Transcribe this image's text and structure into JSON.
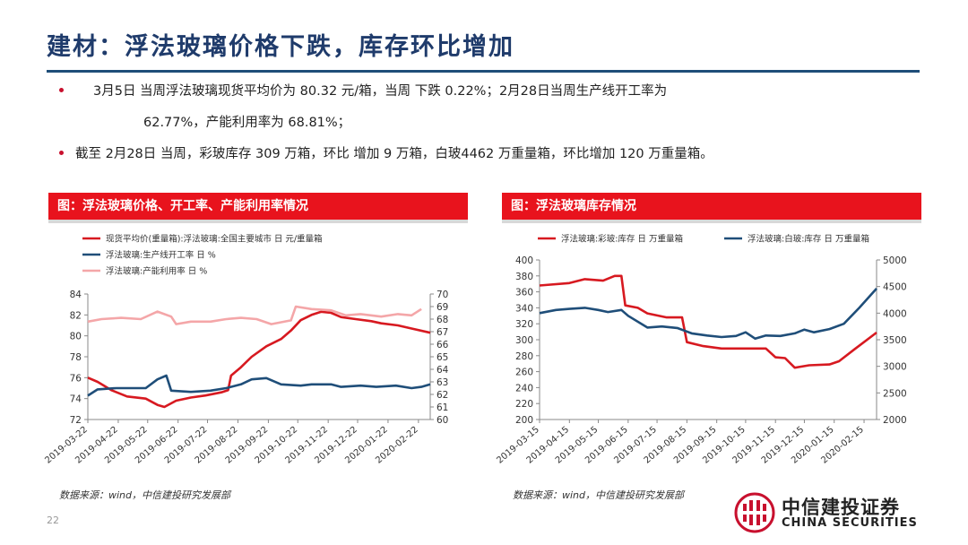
{
  "page": {
    "title": "建材：浮法玻璃价格下跌，库存环比增加",
    "bullets": [
      "3月5日 当周浮法玻璃现货平均价为 80.32 元/箱，当周 下跌 0.22%；2月28日当周生产线开工率为",
      "62.77%，产能利用率为 68.81%；",
      "截至  2月28日 当周，彩玻库存 309 万箱，环比 增加  9 万箱，白玻4462 万重量箱，环比增加 120 万重量箱。"
    ],
    "page_number": "22",
    "logo": {
      "cn": "中信建投证券",
      "en": "CHINA SECURITIES"
    },
    "colors": {
      "title": "#1f3b6b",
      "accent_red": "#e8131d",
      "series_red": "#d71920",
      "series_blue": "#1f4e79",
      "series_pink": "#f4a6a8"
    }
  },
  "chart_data": [
    {
      "type": "line",
      "header": "图：浮法玻璃价格、开工率、产能利用率情况",
      "source": "数据来源：wind，中信建投研究发展部",
      "left_axis": {
        "ylim": [
          72,
          84
        ],
        "ticks": [
          "72",
          "74",
          "76",
          "78",
          "80",
          "82",
          "84"
        ]
      },
      "right_axis": {
        "ylim": [
          60,
          70
        ],
        "ticks": [
          "60",
          "61",
          "62",
          "63",
          "64",
          "65",
          "66",
          "67",
          "68",
          "69",
          "70"
        ]
      },
      "x_ticks": [
        "2019-03-22",
        "2019-04-22",
        "2019-05-22",
        "2019-06-22",
        "2019-07-22",
        "2019-08-22",
        "2019-09-22",
        "2019-10-22",
        "2019-11-22",
        "2019-12-22",
        "2020-01-22",
        "2020-02-22"
      ],
      "xlim": [
        "2019-03-22",
        "2020-03-05"
      ],
      "series": [
        {
          "name": "现货平均价(重量箱):浮法玻璃:全国主要城市 日 元/重量箱",
          "axis": "left",
          "color": "#d71920",
          "points": [
            [
              "2019-03-22",
              76.0
            ],
            [
              "2019-04-01",
              75.6
            ],
            [
              "2019-04-15",
              74.8
            ],
            [
              "2019-05-01",
              74.2
            ],
            [
              "2019-05-20",
              74.0
            ],
            [
              "2019-06-01",
              73.4
            ],
            [
              "2019-06-08",
              73.2
            ],
            [
              "2019-06-20",
              73.8
            ],
            [
              "2019-07-05",
              74.1
            ],
            [
              "2019-07-20",
              74.3
            ],
            [
              "2019-08-05",
              74.6
            ],
            [
              "2019-08-12",
              74.8
            ],
            [
              "2019-08-15",
              76.2
            ],
            [
              "2019-08-25",
              77.0
            ],
            [
              "2019-09-05",
              78.0
            ],
            [
              "2019-09-20",
              79.0
            ],
            [
              "2019-10-05",
              79.7
            ],
            [
              "2019-10-15",
              80.5
            ],
            [
              "2019-10-25",
              81.5
            ],
            [
              "2019-11-05",
              82.0
            ],
            [
              "2019-11-15",
              82.3
            ],
            [
              "2019-11-25",
              82.2
            ],
            [
              "2019-12-05",
              81.8
            ],
            [
              "2019-12-20",
              81.6
            ],
            [
              "2020-01-05",
              81.4
            ],
            [
              "2020-01-15",
              81.2
            ],
            [
              "2020-02-01",
              81.0
            ],
            [
              "2020-02-15",
              80.7
            ],
            [
              "2020-03-05",
              80.3
            ]
          ]
        },
        {
          "name": "浮法玻璃:生产线开工率 日 %",
          "axis": "right",
          "color": "#1f4e79",
          "points": [
            [
              "2019-03-22",
              61.9
            ],
            [
              "2019-04-01",
              62.4
            ],
            [
              "2019-04-20",
              62.5
            ],
            [
              "2019-05-20",
              62.5
            ],
            [
              "2019-06-01",
              63.2
            ],
            [
              "2019-06-10",
              63.5
            ],
            [
              "2019-06-15",
              62.3
            ],
            [
              "2019-07-05",
              62.2
            ],
            [
              "2019-07-25",
              62.3
            ],
            [
              "2019-08-10",
              62.5
            ],
            [
              "2019-08-25",
              62.8
            ],
            [
              "2019-09-05",
              63.2
            ],
            [
              "2019-09-20",
              63.3
            ],
            [
              "2019-10-05",
              62.8
            ],
            [
              "2019-10-25",
              62.7
            ],
            [
              "2019-11-05",
              62.8
            ],
            [
              "2019-11-25",
              62.8
            ],
            [
              "2019-12-05",
              62.6
            ],
            [
              "2019-12-25",
              62.7
            ],
            [
              "2020-01-10",
              62.6
            ],
            [
              "2020-01-30",
              62.7
            ],
            [
              "2020-02-15",
              62.5
            ],
            [
              "2020-02-25",
              62.6
            ],
            [
              "2020-03-05",
              62.8
            ]
          ]
        },
        {
          "name": "浮法玻璃:产能利用率 日 %",
          "axis": "right",
          "color": "#f4a6a8",
          "points": [
            [
              "2019-03-22",
              67.8
            ],
            [
              "2019-04-05",
              68.0
            ],
            [
              "2019-04-25",
              68.1
            ],
            [
              "2019-05-15",
              68.0
            ],
            [
              "2019-06-01",
              68.6
            ],
            [
              "2019-06-15",
              68.2
            ],
            [
              "2019-06-20",
              67.6
            ],
            [
              "2019-07-05",
              67.8
            ],
            [
              "2019-07-25",
              67.8
            ],
            [
              "2019-08-10",
              68.0
            ],
            [
              "2019-08-25",
              68.1
            ],
            [
              "2019-09-10",
              68.0
            ],
            [
              "2019-09-25",
              67.6
            ],
            [
              "2019-10-15",
              67.9
            ],
            [
              "2019-10-20",
              69.0
            ],
            [
              "2019-11-05",
              68.8
            ],
            [
              "2019-11-25",
              68.7
            ],
            [
              "2019-12-10",
              68.3
            ],
            [
              "2019-12-25",
              68.4
            ],
            [
              "2020-01-15",
              68.2
            ],
            [
              "2020-02-01",
              68.4
            ],
            [
              "2020-02-15",
              68.3
            ],
            [
              "2020-02-25",
              68.8
            ]
          ]
        }
      ]
    },
    {
      "type": "line",
      "header": "图：浮法玻璃库存情况",
      "source": "数据来源：wind，中信建投研究发展部",
      "left_axis": {
        "ylim": [
          200,
          400
        ],
        "ticks": [
          "200",
          "220",
          "240",
          "260",
          "280",
          "300",
          "320",
          "340",
          "360",
          "380",
          "400"
        ]
      },
      "right_axis": {
        "ylim": [
          2000,
          5000
        ],
        "ticks": [
          "2000",
          "2500",
          "3000",
          "3500",
          "4000",
          "4500",
          "5000"
        ]
      },
      "x_ticks": [
        "2019-03-15",
        "2019-04-15",
        "2019-05-15",
        "2019-06-15",
        "2019-07-15",
        "2019-08-15",
        "2019-09-15",
        "2019-10-15",
        "2019-11-15",
        "2019-12-15",
        "2020-01-15",
        "2020-02-15"
      ],
      "xlim": [
        "2019-03-15",
        "2020-02-28"
      ],
      "series": [
        {
          "name": "浮法玻璃:彩玻:库存 日 万重量箱",
          "axis": "left",
          "color": "#d71920",
          "points": [
            [
              "2019-03-15",
              368
            ],
            [
              "2019-04-15",
              371
            ],
            [
              "2019-05-01",
              376
            ],
            [
              "2019-05-20",
              374
            ],
            [
              "2019-06-01",
              380
            ],
            [
              "2019-06-08",
              380
            ],
            [
              "2019-06-12",
              343
            ],
            [
              "2019-06-25",
              340
            ],
            [
              "2019-07-05",
              333
            ],
            [
              "2019-07-25",
              328
            ],
            [
              "2019-08-10",
              328
            ],
            [
              "2019-08-15",
              297
            ],
            [
              "2019-09-01",
              292
            ],
            [
              "2019-09-20",
              289
            ],
            [
              "2019-10-05",
              289
            ],
            [
              "2019-10-20",
              289
            ],
            [
              "2019-11-05",
              289
            ],
            [
              "2019-11-15",
              278
            ],
            [
              "2019-11-25",
              277
            ],
            [
              "2019-12-05",
              265
            ],
            [
              "2019-12-20",
              268
            ],
            [
              "2020-01-10",
              269
            ],
            [
              "2020-01-20",
              273
            ],
            [
              "2020-02-05",
              288
            ],
            [
              "2020-02-28",
              309
            ]
          ]
        },
        {
          "name": "浮法玻璃:白玻:库存 日 万重量箱",
          "axis": "right",
          "color": "#1f4e79",
          "points": [
            [
              "2019-03-15",
              4000
            ],
            [
              "2019-04-01",
              4060
            ],
            [
              "2019-04-15",
              4080
            ],
            [
              "2019-05-01",
              4100
            ],
            [
              "2019-05-15",
              4060
            ],
            [
              "2019-05-25",
              4020
            ],
            [
              "2019-06-08",
              4060
            ],
            [
              "2019-06-15",
              3950
            ],
            [
              "2019-07-05",
              3730
            ],
            [
              "2019-07-20",
              3750
            ],
            [
              "2019-08-05",
              3720
            ],
            [
              "2019-08-20",
              3620
            ],
            [
              "2019-09-05",
              3580
            ],
            [
              "2019-09-20",
              3550
            ],
            [
              "2019-10-05",
              3570
            ],
            [
              "2019-10-15",
              3640
            ],
            [
              "2019-10-25",
              3520
            ],
            [
              "2019-11-05",
              3580
            ],
            [
              "2019-11-20",
              3570
            ],
            [
              "2019-12-05",
              3620
            ],
            [
              "2019-12-15",
              3690
            ],
            [
              "2019-12-25",
              3640
            ],
            [
              "2020-01-10",
              3700
            ],
            [
              "2020-01-25",
              3800
            ],
            [
              "2020-02-10",
              4100
            ],
            [
              "2020-02-28",
              4462
            ]
          ]
        }
      ]
    }
  ]
}
